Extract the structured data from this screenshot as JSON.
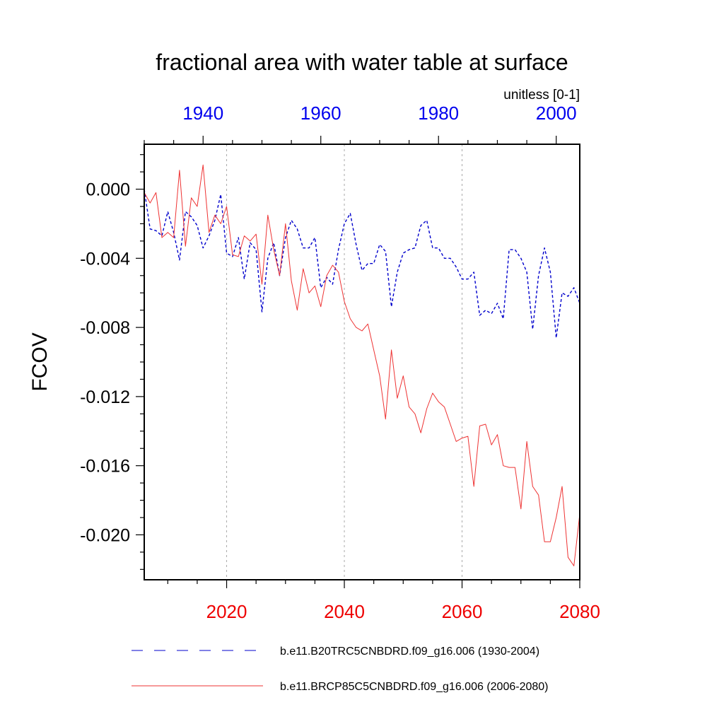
{
  "chart_data": {
    "type": "line",
    "title": "fractional area with water table at surface",
    "units_label": "unitless [0-1]",
    "ylabel": "FCOV",
    "ylim": [
      -0.0226,
      0.0026
    ],
    "y_ticks": [
      0.0,
      -0.004,
      -0.008,
      -0.012,
      -0.016,
      -0.02
    ],
    "y_tick_labels": [
      "0.000",
      "-0.004",
      "-0.008",
      "-0.012",
      "-0.016",
      "-0.020"
    ],
    "grid": "vertical-dotted",
    "legend_position": "bottom",
    "colors": {
      "top_axis": "#0000ee",
      "bottom_axis": "#ee0000",
      "series_top": "#0000cc",
      "series_bottom": "#ee3333"
    },
    "top_axis": {
      "xlim": [
        1930,
        2004
      ],
      "ticks": [
        1940,
        1960,
        1980,
        2000
      ],
      "tick_labels": [
        "1940",
        "1960",
        "1980",
        "2000"
      ]
    },
    "bottom_axis": {
      "xlim": [
        2006,
        2080
      ],
      "ticks": [
        2020,
        2040,
        2060,
        2080
      ],
      "tick_labels": [
        "2020",
        "2040",
        "2060",
        "2080"
      ]
    },
    "series": [
      {
        "name": "b.e11.B20TRC5CNBDRD.f09_g16.006 (1930-2004)",
        "axis": "top",
        "style": "dashed",
        "color": "#0000cc",
        "x": [
          1930,
          1931,
          1932,
          1933,
          1934,
          1935,
          1936,
          1937,
          1938,
          1939,
          1940,
          1941,
          1942,
          1943,
          1944,
          1945,
          1946,
          1947,
          1948,
          1949,
          1950,
          1951,
          1952,
          1953,
          1954,
          1955,
          1956,
          1957,
          1958,
          1959,
          1960,
          1961,
          1962,
          1963,
          1964,
          1965,
          1966,
          1967,
          1968,
          1969,
          1970,
          1971,
          1972,
          1973,
          1974,
          1975,
          1976,
          1977,
          1978,
          1979,
          1980,
          1981,
          1982,
          1983,
          1984,
          1985,
          1986,
          1987,
          1988,
          1989,
          1990,
          1991,
          1992,
          1993,
          1994,
          1995,
          1996,
          1997,
          1998,
          1999,
          2000,
          2001,
          2002,
          2003,
          2004
        ],
        "y": [
          0.0,
          -0.0023,
          -0.0024,
          -0.0027,
          -0.0013,
          -0.0025,
          -0.0041,
          -0.0013,
          -0.0016,
          -0.0021,
          -0.0034,
          -0.0027,
          -0.0018,
          -0.0003,
          -0.0037,
          -0.0039,
          -0.0028,
          -0.0052,
          -0.0031,
          -0.0035,
          -0.0071,
          -0.004,
          -0.0031,
          -0.005,
          -0.0028,
          -0.0018,
          -0.0023,
          -0.0034,
          -0.0034,
          -0.0028,
          -0.0057,
          -0.0051,
          -0.0055,
          -0.0035,
          -0.002,
          -0.0014,
          -0.0032,
          -0.0047,
          -0.0043,
          -0.0043,
          -0.0032,
          -0.0036,
          -0.0068,
          -0.0048,
          -0.0037,
          -0.0035,
          -0.0034,
          -0.0021,
          -0.0018,
          -0.0034,
          -0.0034,
          -0.004,
          -0.004,
          -0.0045,
          -0.0052,
          -0.0052,
          -0.0048,
          -0.0073,
          -0.007,
          -0.0072,
          -0.0066,
          -0.0075,
          -0.0035,
          -0.0035,
          -0.004,
          -0.0048,
          -0.0081,
          -0.005,
          -0.0034,
          -0.0048,
          -0.0086,
          -0.006,
          -0.0062,
          -0.0057,
          -0.0066
        ]
      },
      {
        "name": "b.e11.BRCP85C5CNBDRD.f09_g16.006 (2006-2080)",
        "axis": "bottom",
        "style": "solid",
        "color": "#ee3333",
        "x": [
          2006,
          2007,
          2008,
          2009,
          2010,
          2011,
          2012,
          2013,
          2014,
          2015,
          2016,
          2017,
          2018,
          2019,
          2020,
          2021,
          2022,
          2023,
          2024,
          2025,
          2026,
          2027,
          2028,
          2029,
          2030,
          2031,
          2032,
          2033,
          2034,
          2035,
          2036,
          2037,
          2038,
          2039,
          2040,
          2041,
          2042,
          2043,
          2044,
          2045,
          2046,
          2047,
          2048,
          2049,
          2050,
          2051,
          2052,
          2053,
          2054,
          2055,
          2056,
          2057,
          2058,
          2059,
          2060,
          2061,
          2062,
          2063,
          2064,
          2065,
          2066,
          2067,
          2068,
          2069,
          2070,
          2071,
          2072,
          2073,
          2074,
          2075,
          2076,
          2077,
          2078,
          2079,
          2080
        ],
        "y": [
          -0.0002,
          -0.0008,
          -0.0002,
          -0.0028,
          -0.0025,
          -0.0028,
          0.0011,
          -0.0033,
          -0.0005,
          -0.001,
          0.0014,
          -0.0025,
          -0.0015,
          -0.002,
          -0.001,
          -0.0038,
          -0.0039,
          -0.0027,
          -0.003,
          -0.0026,
          -0.0055,
          -0.0015,
          -0.0035,
          -0.005,
          -0.002,
          -0.0053,
          -0.007,
          -0.0046,
          -0.006,
          -0.0056,
          -0.0068,
          -0.005,
          -0.0044,
          -0.0048,
          -0.0065,
          -0.0075,
          -0.008,
          -0.0082,
          -0.0078,
          -0.0093,
          -0.0108,
          -0.0133,
          -0.0093,
          -0.0121,
          -0.0108,
          -0.0126,
          -0.013,
          -0.0141,
          -0.0127,
          -0.0118,
          -0.0123,
          -0.0126,
          -0.0136,
          -0.0146,
          -0.0144,
          -0.0143,
          -0.0172,
          -0.0137,
          -0.0136,
          -0.0148,
          -0.0142,
          -0.016,
          -0.0161,
          -0.0161,
          -0.0185,
          -0.0146,
          -0.0172,
          -0.0177,
          -0.0204,
          -0.0204,
          -0.019,
          -0.0172,
          -0.0213,
          -0.0218,
          -0.0188
        ]
      }
    ]
  }
}
